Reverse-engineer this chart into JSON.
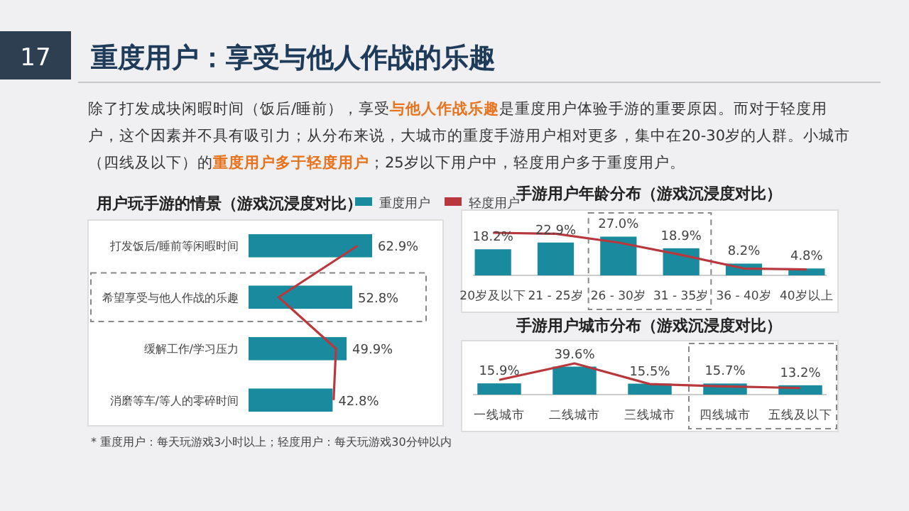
{
  "chart_data": [
    {
      "type": "bar",
      "orientation": "horizontal",
      "title": "用户玩手游的情景（游戏沉浸度对比）",
      "categories": [
        "打发饭后/睡前等闲暇时间",
        "希望享受与他人作战的乐趣",
        "缓解工作/学习压力",
        "消磨等车/等人的零碎时间"
      ],
      "series": [
        {
          "name": "重度用户",
          "color": "#1a8a9e",
          "values": [
            62.9,
            52.8,
            49.9,
            42.8
          ],
          "value_labels": [
            "62.9%",
            "52.8%",
            "49.9%",
            "42.8%"
          ]
        },
        {
          "name": "轻度用户",
          "type": "line",
          "color": "#b8393d",
          "values": [
            55.5,
            15.3,
            44.5,
            43.3
          ]
        }
      ],
      "legend": "top right",
      "tick_labels": "y",
      "annotations": [
        "17",
        "重度用户：享受与他人作战的乐趣",
        "除了打发成块闲暇时间（饭后/睡前），享受**与他人作战乐趣**是重度用户体验手游的重要原因。而对于轻度用户，这个因素并不具有吸引力；从分布来说，大城市的重度手游用户相对更多，集中在20-30岁的人群。小城市（四线及以下）的**重度用户多于轻度用户**；25岁以下用户中，轻度用户多于重度用户。",
        "* 重度用户：每天玩游戏3小时以上；轻度用户：每天玩游戏30分钟以内"
      ]
    },
    {
      "type": "bar",
      "title": "手游用户年龄分布（游戏沉浸度对比）",
      "categories": [
        "20岁及以下",
        "21 - 25岁",
        "26 - 30岁",
        "31 - 35岁",
        "36 - 40岁",
        "40岁以上"
      ],
      "series": [
        {
          "color": "#1a8a9e",
          "values": [
            18.2,
            22.9,
            27.0,
            18.9,
            8.2,
            4.8
          ],
          "value_labels": [
            "18.2%",
            "22.9%",
            "27.0%",
            "18.9%",
            "8.2%",
            "4.8%"
          ]
        },
        {
          "type": "line",
          "color": "#b8393d",
          "values": [
            29.7,
            29.0,
            22.9,
            14.3,
            4.8,
            4.1
          ]
        }
      ],
      "tick_labels": "x"
    },
    {
      "type": "bar",
      "title": "手游用户城市分布（游戏沉浸度对比）",
      "categories": [
        "一线城市",
        "二线城市",
        "三线城市",
        "四线城市",
        "五线及以下"
      ],
      "series": [
        {
          "color": "#1a8a9e",
          "values": [
            15.9,
            39.6,
            15.5,
            15.7,
            13.2
          ],
          "value_labels": [
            "15.9%",
            "39.6%",
            "15.5%",
            "15.7%",
            "13.2%"
          ]
        },
        {
          "type": "line",
          "color": "#b8393d",
          "values": [
            20.9,
            44.2,
            14.9,
            11.6,
            9.3
          ]
        }
      ],
      "tick_labels": "x"
    }
  ]
}
